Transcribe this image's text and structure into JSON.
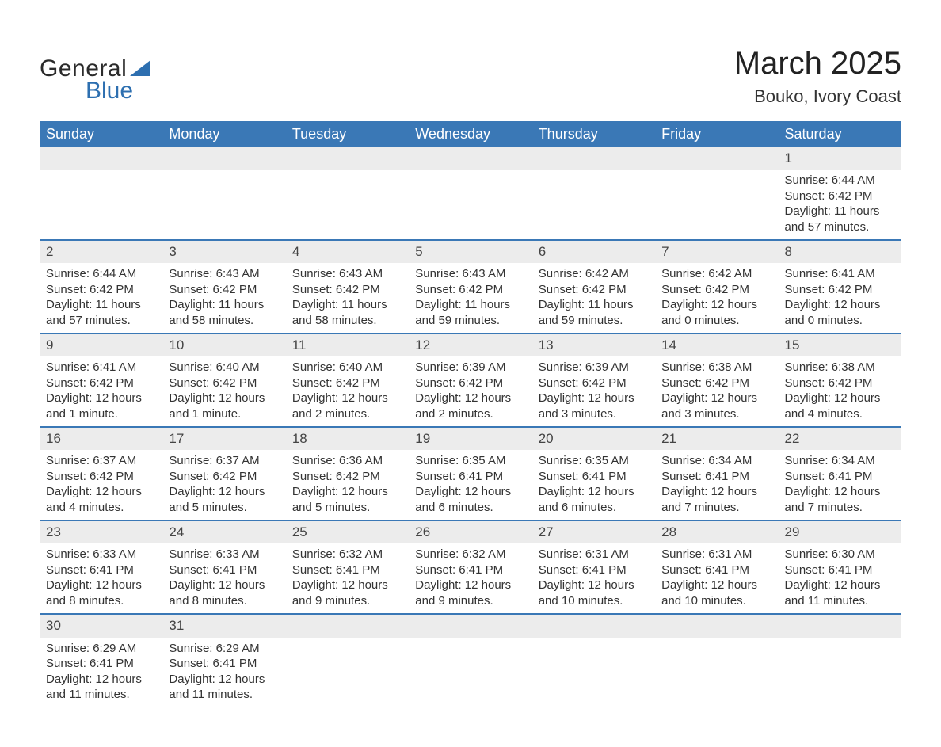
{
  "logo": {
    "text_general": "General",
    "text_blue": "Blue",
    "general_color": "#2b2b2b",
    "blue_color": "#2d6fb0",
    "sail_color": "#2d6fb0"
  },
  "header": {
    "month_title": "March 2025",
    "location": "Bouko, Ivory Coast"
  },
  "calendar": {
    "type": "table",
    "header_bg": "#3a78b6",
    "header_fg": "#ffffff",
    "daynum_bg": "#ececec",
    "row_border_color": "#3a78b6",
    "background_color": "#ffffff",
    "text_color": "#333333",
    "header_fontsize": 18,
    "daynum_fontsize": 17,
    "detail_fontsize": 15,
    "columns": [
      "Sunday",
      "Monday",
      "Tuesday",
      "Wednesday",
      "Thursday",
      "Friday",
      "Saturday"
    ],
    "weeks": [
      [
        null,
        null,
        null,
        null,
        null,
        null,
        {
          "day": "1",
          "sunrise": "Sunrise: 6:44 AM",
          "sunset": "Sunset: 6:42 PM",
          "daylight": "Daylight: 11 hours and 57 minutes."
        }
      ],
      [
        {
          "day": "2",
          "sunrise": "Sunrise: 6:44 AM",
          "sunset": "Sunset: 6:42 PM",
          "daylight": "Daylight: 11 hours and 57 minutes."
        },
        {
          "day": "3",
          "sunrise": "Sunrise: 6:43 AM",
          "sunset": "Sunset: 6:42 PM",
          "daylight": "Daylight: 11 hours and 58 minutes."
        },
        {
          "day": "4",
          "sunrise": "Sunrise: 6:43 AM",
          "sunset": "Sunset: 6:42 PM",
          "daylight": "Daylight: 11 hours and 58 minutes."
        },
        {
          "day": "5",
          "sunrise": "Sunrise: 6:43 AM",
          "sunset": "Sunset: 6:42 PM",
          "daylight": "Daylight: 11 hours and 59 minutes."
        },
        {
          "day": "6",
          "sunrise": "Sunrise: 6:42 AM",
          "sunset": "Sunset: 6:42 PM",
          "daylight": "Daylight: 11 hours and 59 minutes."
        },
        {
          "day": "7",
          "sunrise": "Sunrise: 6:42 AM",
          "sunset": "Sunset: 6:42 PM",
          "daylight": "Daylight: 12 hours and 0 minutes."
        },
        {
          "day": "8",
          "sunrise": "Sunrise: 6:41 AM",
          "sunset": "Sunset: 6:42 PM",
          "daylight": "Daylight: 12 hours and 0 minutes."
        }
      ],
      [
        {
          "day": "9",
          "sunrise": "Sunrise: 6:41 AM",
          "sunset": "Sunset: 6:42 PM",
          "daylight": "Daylight: 12 hours and 1 minute."
        },
        {
          "day": "10",
          "sunrise": "Sunrise: 6:40 AM",
          "sunset": "Sunset: 6:42 PM",
          "daylight": "Daylight: 12 hours and 1 minute."
        },
        {
          "day": "11",
          "sunrise": "Sunrise: 6:40 AM",
          "sunset": "Sunset: 6:42 PM",
          "daylight": "Daylight: 12 hours and 2 minutes."
        },
        {
          "day": "12",
          "sunrise": "Sunrise: 6:39 AM",
          "sunset": "Sunset: 6:42 PM",
          "daylight": "Daylight: 12 hours and 2 minutes."
        },
        {
          "day": "13",
          "sunrise": "Sunrise: 6:39 AM",
          "sunset": "Sunset: 6:42 PM",
          "daylight": "Daylight: 12 hours and 3 minutes."
        },
        {
          "day": "14",
          "sunrise": "Sunrise: 6:38 AM",
          "sunset": "Sunset: 6:42 PM",
          "daylight": "Daylight: 12 hours and 3 minutes."
        },
        {
          "day": "15",
          "sunrise": "Sunrise: 6:38 AM",
          "sunset": "Sunset: 6:42 PM",
          "daylight": "Daylight: 12 hours and 4 minutes."
        }
      ],
      [
        {
          "day": "16",
          "sunrise": "Sunrise: 6:37 AM",
          "sunset": "Sunset: 6:42 PM",
          "daylight": "Daylight: 12 hours and 4 minutes."
        },
        {
          "day": "17",
          "sunrise": "Sunrise: 6:37 AM",
          "sunset": "Sunset: 6:42 PM",
          "daylight": "Daylight: 12 hours and 5 minutes."
        },
        {
          "day": "18",
          "sunrise": "Sunrise: 6:36 AM",
          "sunset": "Sunset: 6:42 PM",
          "daylight": "Daylight: 12 hours and 5 minutes."
        },
        {
          "day": "19",
          "sunrise": "Sunrise: 6:35 AM",
          "sunset": "Sunset: 6:41 PM",
          "daylight": "Daylight: 12 hours and 6 minutes."
        },
        {
          "day": "20",
          "sunrise": "Sunrise: 6:35 AM",
          "sunset": "Sunset: 6:41 PM",
          "daylight": "Daylight: 12 hours and 6 minutes."
        },
        {
          "day": "21",
          "sunrise": "Sunrise: 6:34 AM",
          "sunset": "Sunset: 6:41 PM",
          "daylight": "Daylight: 12 hours and 7 minutes."
        },
        {
          "day": "22",
          "sunrise": "Sunrise: 6:34 AM",
          "sunset": "Sunset: 6:41 PM",
          "daylight": "Daylight: 12 hours and 7 minutes."
        }
      ],
      [
        {
          "day": "23",
          "sunrise": "Sunrise: 6:33 AM",
          "sunset": "Sunset: 6:41 PM",
          "daylight": "Daylight: 12 hours and 8 minutes."
        },
        {
          "day": "24",
          "sunrise": "Sunrise: 6:33 AM",
          "sunset": "Sunset: 6:41 PM",
          "daylight": "Daylight: 12 hours and 8 minutes."
        },
        {
          "day": "25",
          "sunrise": "Sunrise: 6:32 AM",
          "sunset": "Sunset: 6:41 PM",
          "daylight": "Daylight: 12 hours and 9 minutes."
        },
        {
          "day": "26",
          "sunrise": "Sunrise: 6:32 AM",
          "sunset": "Sunset: 6:41 PM",
          "daylight": "Daylight: 12 hours and 9 minutes."
        },
        {
          "day": "27",
          "sunrise": "Sunrise: 6:31 AM",
          "sunset": "Sunset: 6:41 PM",
          "daylight": "Daylight: 12 hours and 10 minutes."
        },
        {
          "day": "28",
          "sunrise": "Sunrise: 6:31 AM",
          "sunset": "Sunset: 6:41 PM",
          "daylight": "Daylight: 12 hours and 10 minutes."
        },
        {
          "day": "29",
          "sunrise": "Sunrise: 6:30 AM",
          "sunset": "Sunset: 6:41 PM",
          "daylight": "Daylight: 12 hours and 11 minutes."
        }
      ],
      [
        {
          "day": "30",
          "sunrise": "Sunrise: 6:29 AM",
          "sunset": "Sunset: 6:41 PM",
          "daylight": "Daylight: 12 hours and 11 minutes."
        },
        {
          "day": "31",
          "sunrise": "Sunrise: 6:29 AM",
          "sunset": "Sunset: 6:41 PM",
          "daylight": "Daylight: 12 hours and 11 minutes."
        },
        null,
        null,
        null,
        null,
        null
      ]
    ]
  }
}
